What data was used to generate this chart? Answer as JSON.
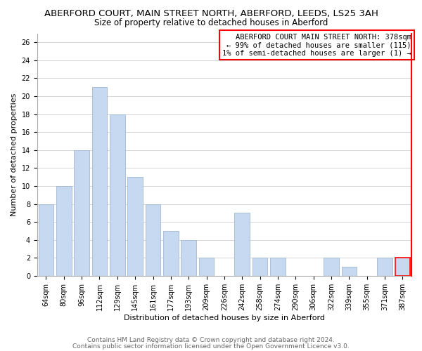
{
  "title": "ABERFORD COURT, MAIN STREET NORTH, ABERFORD, LEEDS, LS25 3AH",
  "subtitle": "Size of property relative to detached houses in Aberford",
  "xlabel": "Distribution of detached houses by size in Aberford",
  "ylabel": "Number of detached properties",
  "bar_labels": [
    "64sqm",
    "80sqm",
    "96sqm",
    "112sqm",
    "129sqm",
    "145sqm",
    "161sqm",
    "177sqm",
    "193sqm",
    "209sqm",
    "226sqm",
    "242sqm",
    "258sqm",
    "274sqm",
    "290sqm",
    "306sqm",
    "322sqm",
    "339sqm",
    "355sqm",
    "371sqm",
    "387sqm"
  ],
  "bar_values": [
    8,
    10,
    14,
    21,
    18,
    11,
    8,
    5,
    4,
    2,
    0,
    7,
    2,
    2,
    0,
    0,
    2,
    1,
    0,
    2,
    2
  ],
  "bar_color": "#c6d9f0",
  "bar_edge_color": "#a0b8d0",
  "highlight_bar_index": 20,
  "highlight_bar_edge_color": "#ff0000",
  "vline_color": "#ff0000",
  "ylim": [
    0,
    27
  ],
  "yticks": [
    0,
    2,
    4,
    6,
    8,
    10,
    12,
    14,
    16,
    18,
    20,
    22,
    24,
    26
  ],
  "legend_title": "ABERFORD COURT MAIN STREET NORTH: 378sqm",
  "legend_line1": "← 99% of detached houses are smaller (115)",
  "legend_line2": "1% of semi-detached houses are larger (1) →",
  "footer_line1": "Contains HM Land Registry data © Crown copyright and database right 2024.",
  "footer_line2": "Contains public sector information licensed under the Open Government Licence v3.0.",
  "grid_color": "#d0d0d0",
  "background_color": "#ffffff",
  "title_fontsize": 9.5,
  "subtitle_fontsize": 8.5,
  "axis_label_fontsize": 8,
  "tick_fontsize": 7,
  "legend_fontsize": 7.5,
  "footer_fontsize": 6.5
}
